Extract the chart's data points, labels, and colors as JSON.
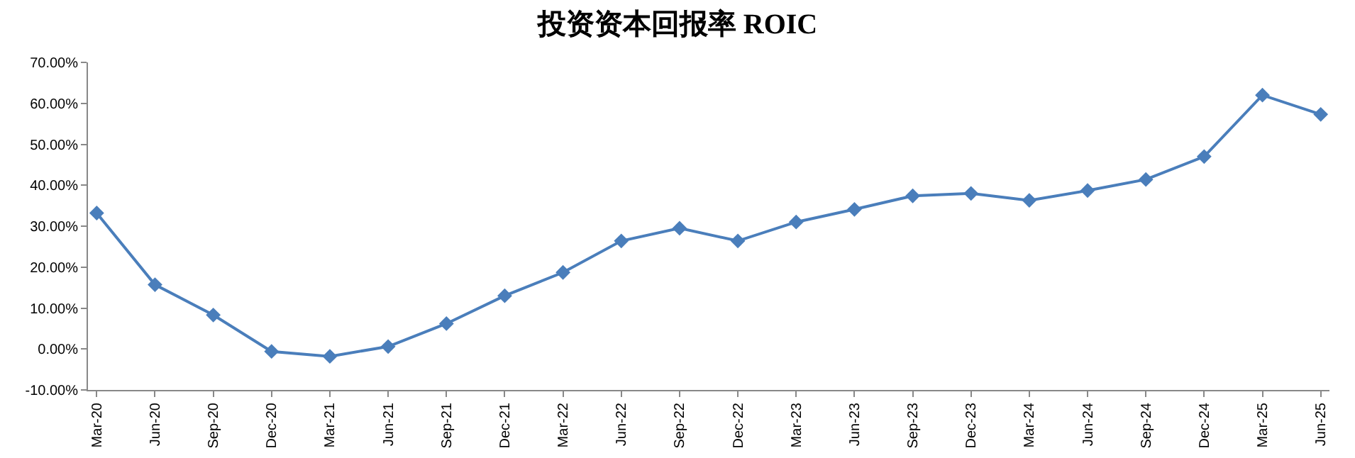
{
  "chart_data": {
    "type": "line",
    "title": "投资资本回报率 ROIC",
    "categories": [
      "Mar-20",
      "Jun-20",
      "Sep-20",
      "Dec-20",
      "Mar-21",
      "Jun-21",
      "Sep-21",
      "Dec-21",
      "Mar-22",
      "Jun-22",
      "Sep-22",
      "Dec-22",
      "Mar-23",
      "Jun-23",
      "Sep-23",
      "Dec-23",
      "Mar-24",
      "Jun-24",
      "Sep-24",
      "Dec-24",
      "Mar-25",
      "Jun-25"
    ],
    "series": [
      {
        "color": "#4a7ebb",
        "values": [
          33.2,
          15.7,
          8.3,
          -0.6,
          -1.8,
          0.6,
          6.2,
          13.0,
          18.7,
          26.4,
          29.5,
          26.4,
          31.0,
          34.1,
          37.4,
          38.0,
          36.3,
          38.7,
          41.4,
          47.0,
          62.0,
          57.3
        ]
      }
    ],
    "ylim": [
      -10,
      70
    ],
    "yticks": [
      {
        "value": -10,
        "label": "-10.00%"
      },
      {
        "value": 0,
        "label": "0.00%"
      },
      {
        "value": 10,
        "label": "10.00%"
      },
      {
        "value": 20,
        "label": "20.00%"
      },
      {
        "value": 30,
        "label": "30.00%"
      },
      {
        "value": 40,
        "label": "40.00%"
      },
      {
        "value": 50,
        "label": "50.00%"
      },
      {
        "value": 60,
        "label": "60.00%"
      },
      {
        "value": 70,
        "label": "70.00%"
      }
    ],
    "grid": false,
    "marker": "diamond",
    "line_style": "solid"
  }
}
